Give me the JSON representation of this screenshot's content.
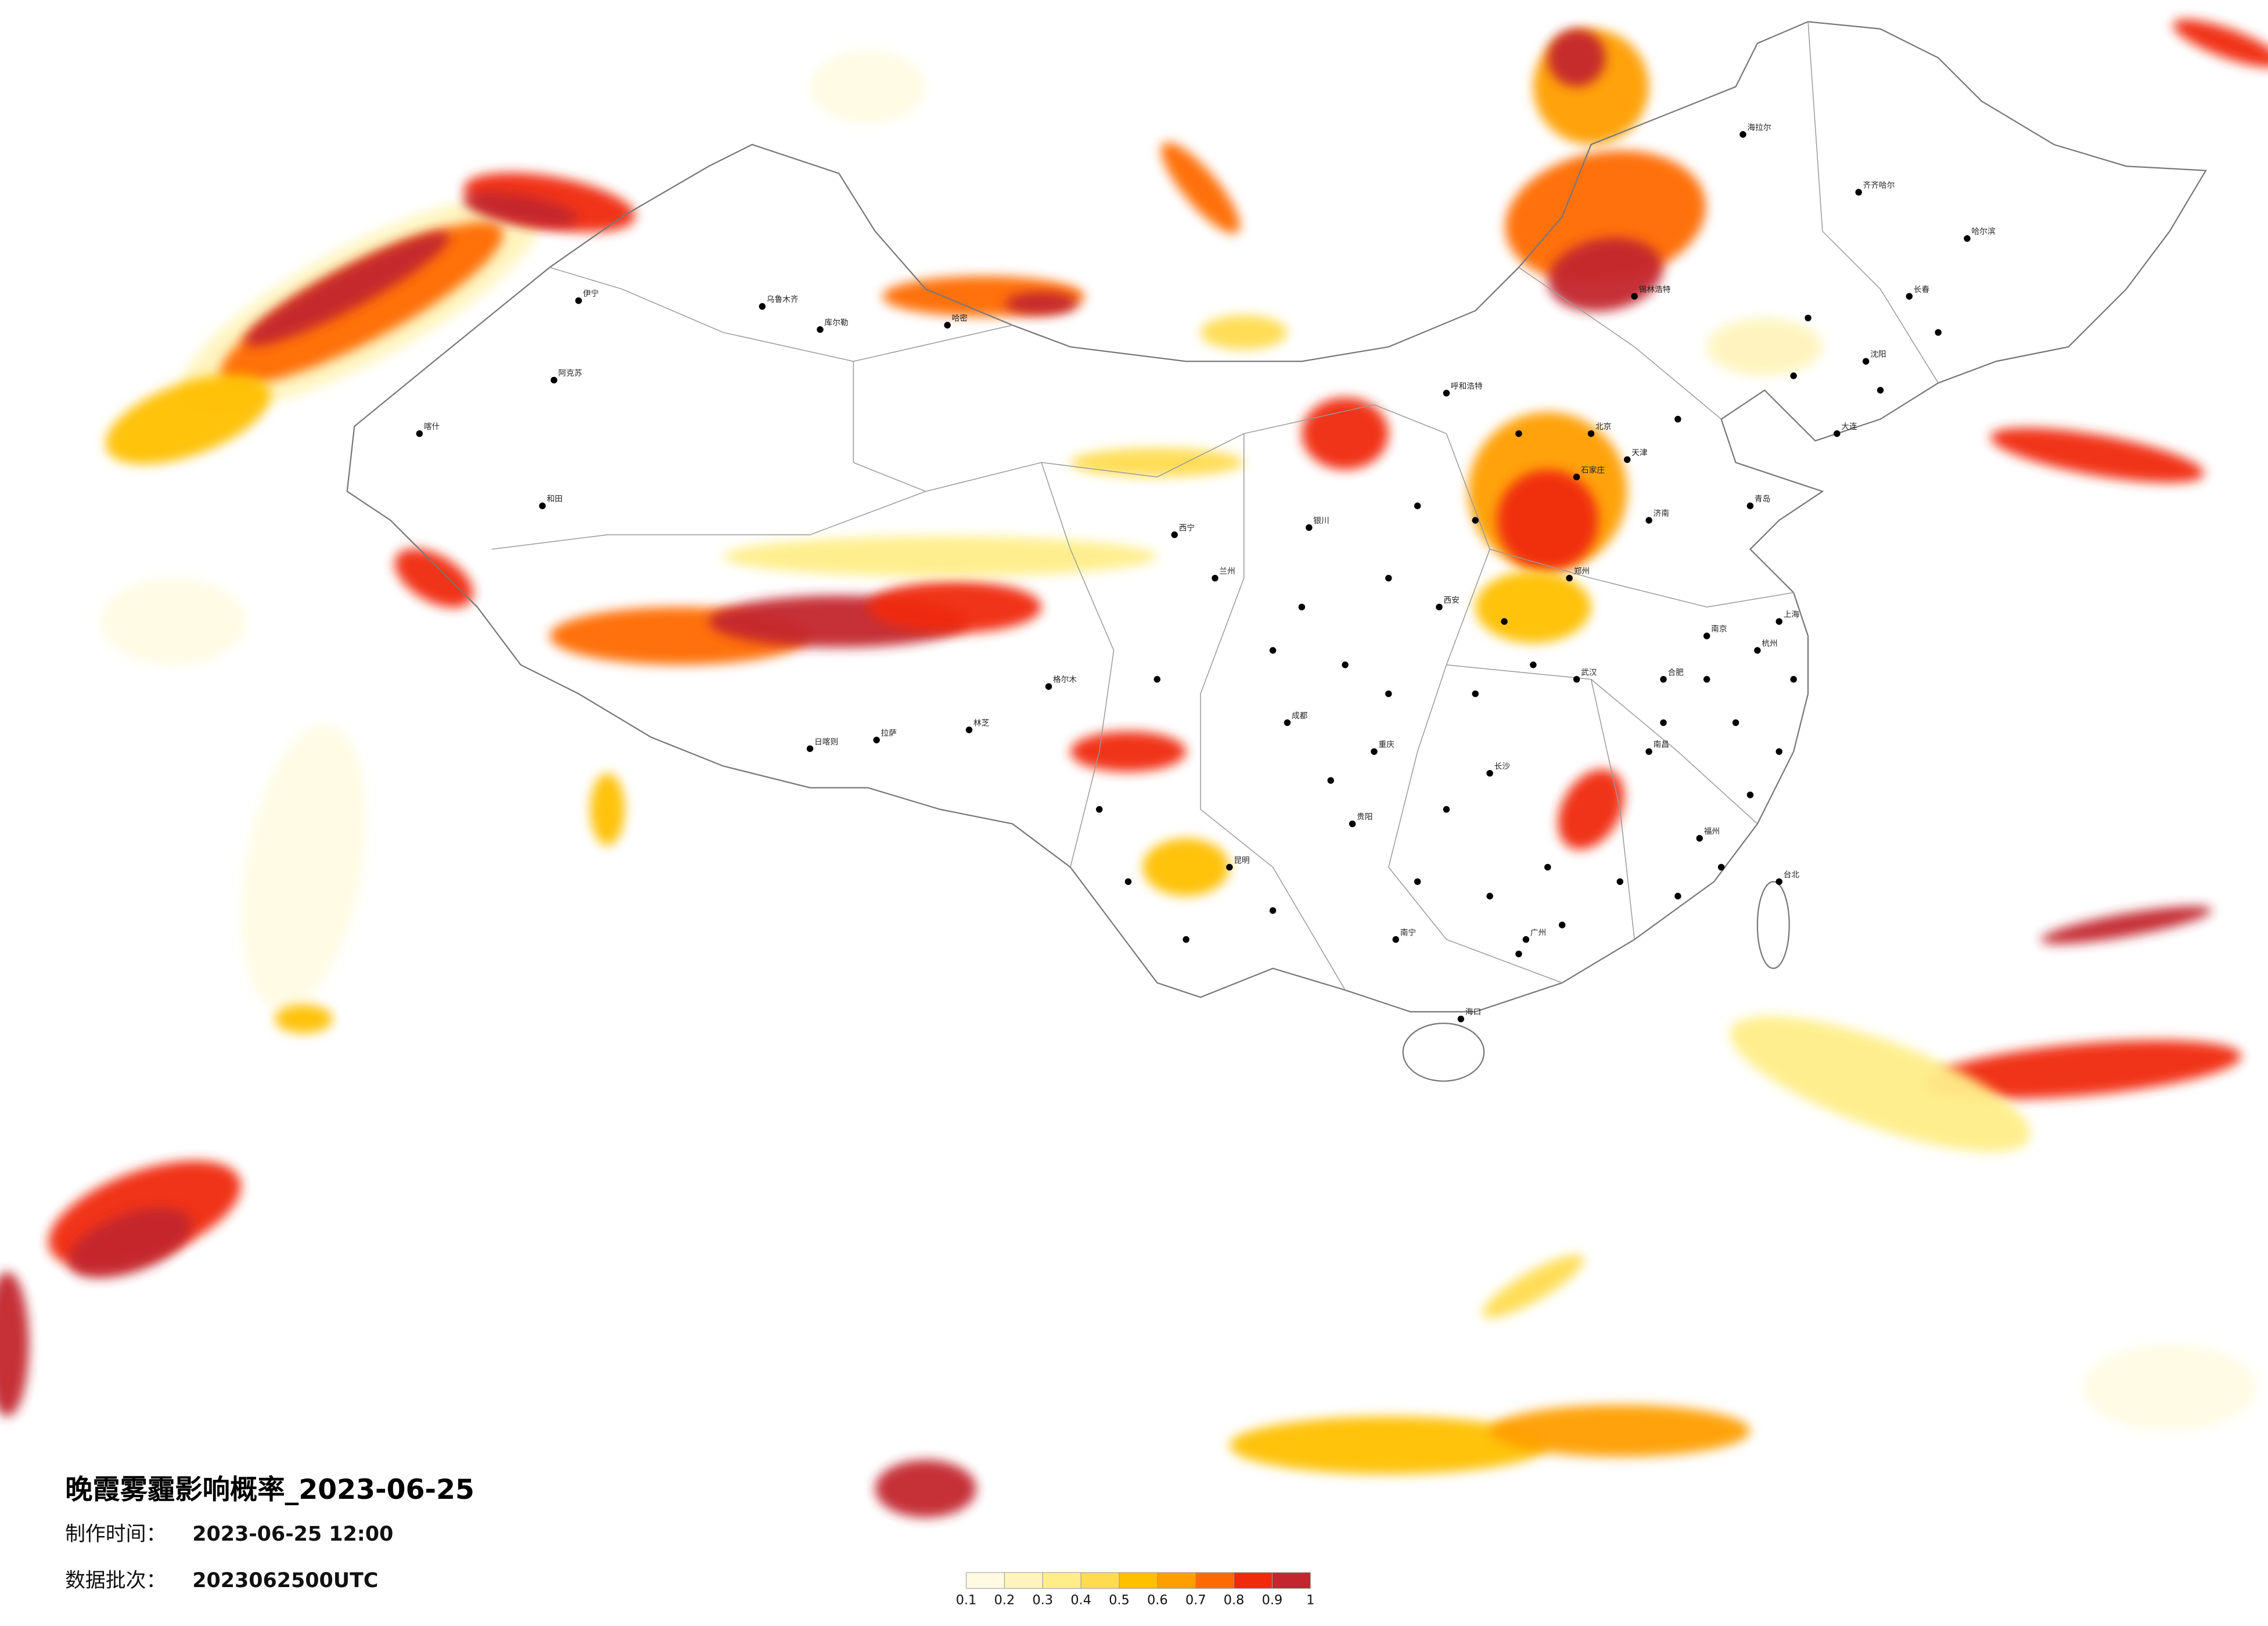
{
  "title": "晚霞雾霾影响概率_2023-06-25",
  "made_label": "制作时间：",
  "made_value": "2023-06-25 12:00",
  "batch_label": "数据批次：",
  "batch_value": "2023062500UTC",
  "legend": {
    "ticks": [
      0.1,
      0.2,
      0.3,
      0.4,
      0.5,
      0.6,
      0.7,
      0.8,
      0.9,
      1
    ],
    "colors": [
      "#fffbe3",
      "#fff4bd",
      "#ffee88",
      "#ffdc4f",
      "#ffc000",
      "#ff9e00",
      "#ff6a00",
      "#f02a0a",
      "#c3262f"
    ]
  },
  "cities": [
    {
      "name": "乌鲁木齐"
    },
    {
      "name": "哈密"
    },
    {
      "name": "库尔勒"
    },
    {
      "name": "阿克苏"
    },
    {
      "name": "伊宁"
    },
    {
      "name": "喀什"
    },
    {
      "name": "和田"
    },
    {
      "name": "日喀则"
    },
    {
      "name": "拉萨"
    },
    {
      "name": "林芝"
    },
    {
      "name": "格尔木"
    },
    {
      "name": "西宁"
    },
    {
      "name": "兰州"
    },
    {
      "name": "银川"
    },
    {
      "name": "呼和浩特"
    },
    {
      "name": "北京"
    },
    {
      "name": "天津"
    },
    {
      "name": "石家庄"
    },
    {
      "name": "济南"
    },
    {
      "name": "郑州"
    },
    {
      "name": "西安"
    },
    {
      "name": "成都"
    },
    {
      "name": "重庆"
    },
    {
      "name": "贵阳"
    },
    {
      "name": "昆明"
    },
    {
      "name": "南宁"
    },
    {
      "name": "海口"
    },
    {
      "name": "长沙"
    },
    {
      "name": "武汉"
    },
    {
      "name": "南昌"
    },
    {
      "name": "福州"
    },
    {
      "name": "杭州"
    },
    {
      "name": "上海"
    },
    {
      "name": "南京"
    },
    {
      "name": "合肥"
    },
    {
      "name": "哈尔滨"
    },
    {
      "name": "长春"
    },
    {
      "name": "沈阳"
    },
    {
      "name": "台北"
    },
    {
      "name": "广州"
    },
    {
      "name": "海拉尔"
    },
    {
      "name": "齐齐哈尔"
    },
    {
      "name": "锡林浩特"
    },
    {
      "name": "大连"
    },
    {
      "name": "青岛"
    }
  ]
}
